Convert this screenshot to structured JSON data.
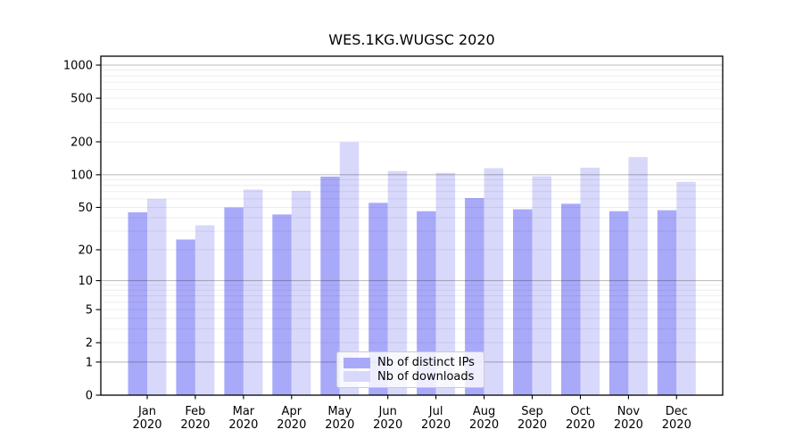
{
  "figure": {
    "title": "WES.1KG.WUGSC 2020"
  },
  "chart_data": {
    "type": "bar",
    "title": "WES.1KG.WUGSC 2020",
    "categories": [
      "Jan 2020",
      "Feb 2020",
      "Mar 2020",
      "Apr 2020",
      "May 2020",
      "Jun 2020",
      "Jul 2020",
      "Aug 2020",
      "Sep 2020",
      "Oct 2020",
      "Nov 2020",
      "Dec 2020"
    ],
    "x_tick_months": [
      "Jan",
      "Feb",
      "Mar",
      "Apr",
      "May",
      "Jun",
      "Jul",
      "Aug",
      "Sep",
      "Oct",
      "Nov",
      "Dec"
    ],
    "x_tick_year": "2020",
    "series": [
      {
        "name": "Nb of distinct IPs",
        "color": "#a9a9f9",
        "values": [
          45,
          25,
          50,
          43,
          96,
          55,
          46,
          61,
          48,
          54,
          46,
          47
        ]
      },
      {
        "name": "Nb of downloads",
        "color": "#d8d8fb",
        "values": [
          60,
          34,
          73,
          71,
          199,
          108,
          104,
          115,
          97,
          116,
          145,
          86
        ]
      }
    ],
    "y_scale": "log1p",
    "y_ticks": [
      0,
      1,
      2,
      5,
      10,
      20,
      50,
      100,
      200,
      500,
      1000
    ],
    "ylim": [
      0,
      1210
    ],
    "grid": {
      "major": [
        1,
        10,
        100,
        1000
      ],
      "minor": [
        2,
        3,
        4,
        5,
        6,
        7,
        8,
        9,
        20,
        30,
        40,
        50,
        60,
        70,
        80,
        90,
        200,
        300,
        400,
        500,
        600,
        700,
        800,
        900
      ]
    },
    "legend_position": "lower center",
    "colors": {
      "axis": "#000000",
      "text": "#000000",
      "grid_major": "#b8b8b8",
      "grid_minor": "#ededed",
      "legend_border": "#cccccc"
    }
  }
}
